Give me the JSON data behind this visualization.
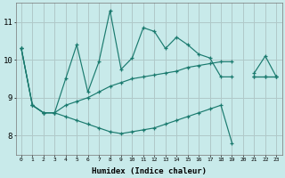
{
  "xlabel": "Humidex (Indice chaleur)",
  "x": [
    0,
    1,
    2,
    3,
    4,
    5,
    6,
    7,
    8,
    9,
    10,
    11,
    12,
    13,
    14,
    15,
    16,
    17,
    18,
    19,
    20,
    21,
    22,
    23
  ],
  "upper": [
    10.3,
    8.8,
    8.6,
    8.6,
    9.5,
    10.4,
    9.15,
    9.95,
    11.3,
    9.75,
    10.05,
    10.85,
    10.75,
    10.3,
    10.6,
    10.4,
    10.15,
    10.05,
    9.55,
    9.55,
    null,
    9.65,
    10.1,
    9.55
  ],
  "mid": [
    10.3,
    8.8,
    8.6,
    8.6,
    8.8,
    8.9,
    9.0,
    9.15,
    9.3,
    9.4,
    9.5,
    9.55,
    9.6,
    9.65,
    9.7,
    9.8,
    9.85,
    9.9,
    9.95,
    9.95,
    null,
    9.55,
    9.55,
    9.55
  ],
  "lower": [
    10.3,
    8.8,
    8.6,
    8.6,
    8.5,
    8.4,
    8.3,
    8.2,
    8.1,
    8.05,
    8.1,
    8.15,
    8.2,
    8.3,
    8.4,
    8.5,
    8.6,
    8.7,
    8.8,
    7.8,
    null,
    9.55,
    9.55,
    9.55
  ],
  "bg_color": "#c8eaea",
  "line_color": "#1a7a6e",
  "grid_color": "#b0c8c8",
  "ylim": [
    7.5,
    11.5
  ],
  "yticks": [
    8,
    9,
    10,
    11
  ],
  "xlim": [
    -0.5,
    23.5
  ]
}
